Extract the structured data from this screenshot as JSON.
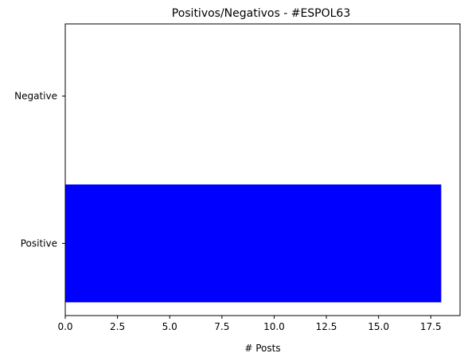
{
  "chart_data": {
    "type": "bar",
    "orientation": "horizontal",
    "title": "Positivos/Negativos - #ESPOL63",
    "xlabel": "# Posts",
    "ylabel": "",
    "categories": [
      "Positive",
      "Negative"
    ],
    "values": [
      18,
      0
    ],
    "bar_color": "#0000ff",
    "xlim": [
      0,
      18.9
    ],
    "xticks": [
      0,
      2.5,
      5,
      7.5,
      10,
      12.5,
      15,
      17.5
    ],
    "xtick_labels": [
      "0.0",
      "2.5",
      "5.0",
      "7.5",
      "10.0",
      "12.5",
      "15.0",
      "17.5"
    ],
    "grid": false
  }
}
